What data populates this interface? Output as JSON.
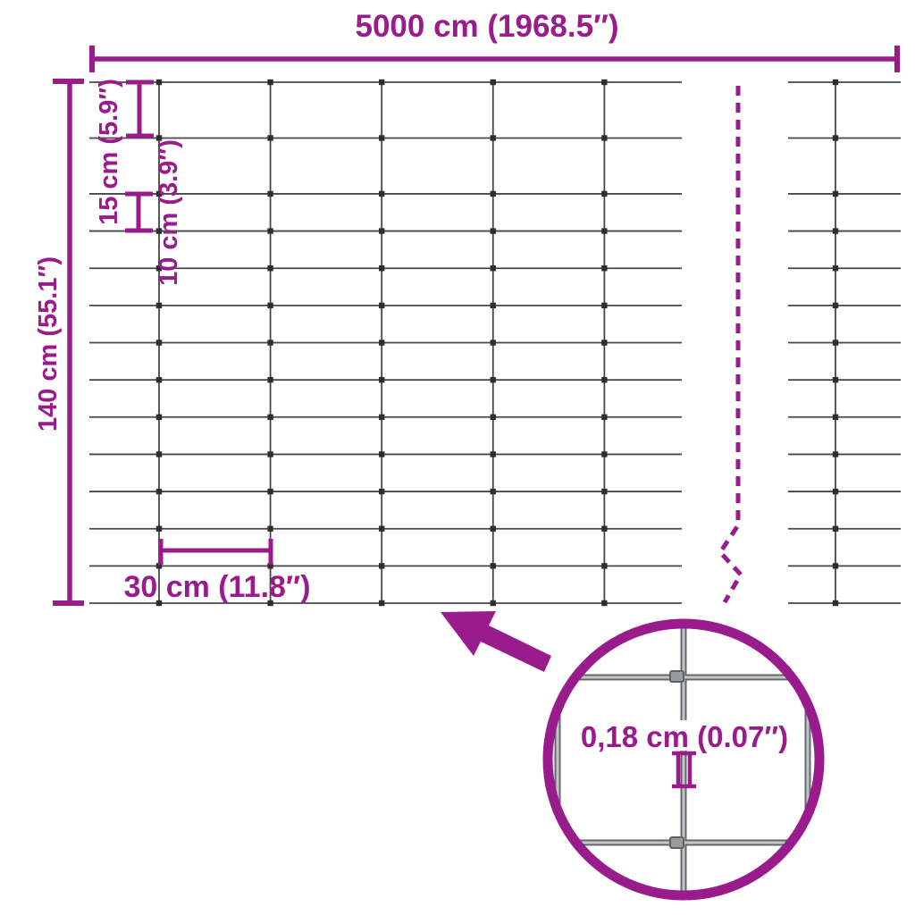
{
  "diagram": {
    "title": "wire mesh fence dimension diagram"
  },
  "labels": {
    "total_width": "5000 cm (1968.5″)",
    "total_height": "140 cm (55.1″)",
    "gap_15": "15 cm (5.9″)",
    "gap_10": "10 cm (3.9″)",
    "gap_30": "30 cm (11.8″)",
    "wire_thickness": "0,18 cm (0.07″)"
  },
  "mesh": {
    "width_cm": 5000,
    "height_cm": 140,
    "row_gaps_cm": [
      15,
      15,
      10,
      10,
      10,
      10,
      10,
      10,
      10,
      10,
      10,
      10,
      10
    ],
    "col_spacing_cm": 30,
    "wire_diameter_cm": 0.18
  },
  "colors": {
    "accent": "#9A1B8C",
    "wire": "#44484A",
    "wire_knot": "#2B2F31",
    "detail_wire_dark": "#64686A",
    "detail_wire_light": "#C2C6C8",
    "detail_knot_fill": "#989C9E",
    "detail_knot_edge": "#5E6264",
    "background": "#FFFFFF"
  }
}
